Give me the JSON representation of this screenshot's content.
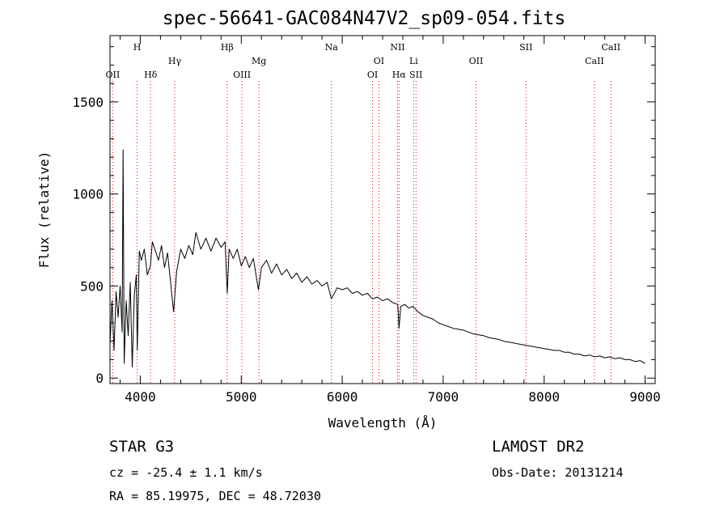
{
  "chart_data": {
    "type": "line",
    "title": "spec-56641-GAC084N47V2_sp09-054.fits",
    "xlabel": "Wavelength (Å)",
    "ylabel": "Flux (relative)",
    "xlim": [
      3700,
      9100
    ],
    "ylim": [
      -30,
      1860
    ],
    "xticks": [
      4000,
      5000,
      6000,
      7000,
      8000,
      9000
    ],
    "yticks": [
      0,
      500,
      1000,
      1500
    ],
    "grid": false,
    "series": [
      {
        "color": "#000000",
        "points": [
          [
            3700,
            180
          ],
          [
            3720,
            420
          ],
          [
            3740,
            150
          ],
          [
            3760,
            470
          ],
          [
            3780,
            330
          ],
          [
            3800,
            500
          ],
          [
            3820,
            250
          ],
          [
            3830,
            1240
          ],
          [
            3840,
            80
          ],
          [
            3860,
            420
          ],
          [
            3880,
            230
          ],
          [
            3900,
            520
          ],
          [
            3920,
            60
          ],
          [
            3940,
            450
          ],
          [
            3960,
            560
          ],
          [
            3970,
            150
          ],
          [
            3990,
            690
          ],
          [
            4010,
            640
          ],
          [
            4040,
            700
          ],
          [
            4070,
            560
          ],
          [
            4100,
            610
          ],
          [
            4120,
            740
          ],
          [
            4150,
            690
          ],
          [
            4180,
            640
          ],
          [
            4210,
            720
          ],
          [
            4240,
            600
          ],
          [
            4270,
            680
          ],
          [
            4300,
            520
          ],
          [
            4330,
            360
          ],
          [
            4360,
            580
          ],
          [
            4400,
            700
          ],
          [
            4440,
            650
          ],
          [
            4480,
            720
          ],
          [
            4520,
            670
          ],
          [
            4550,
            790
          ],
          [
            4600,
            700
          ],
          [
            4650,
            760
          ],
          [
            4700,
            690
          ],
          [
            4750,
            760
          ],
          [
            4800,
            710
          ],
          [
            4840,
            740
          ],
          [
            4861,
            460
          ],
          [
            4880,
            700
          ],
          [
            4920,
            650
          ],
          [
            4960,
            700
          ],
          [
            5000,
            610
          ],
          [
            5040,
            660
          ],
          [
            5080,
            600
          ],
          [
            5120,
            650
          ],
          [
            5170,
            480
          ],
          [
            5200,
            600
          ],
          [
            5250,
            640
          ],
          [
            5300,
            570
          ],
          [
            5350,
            620
          ],
          [
            5400,
            560
          ],
          [
            5450,
            590
          ],
          [
            5500,
            540
          ],
          [
            5550,
            570
          ],
          [
            5600,
            520
          ],
          [
            5650,
            550
          ],
          [
            5700,
            510
          ],
          [
            5750,
            530
          ],
          [
            5800,
            500
          ],
          [
            5850,
            520
          ],
          [
            5893,
            430
          ],
          [
            5950,
            490
          ],
          [
            6000,
            480
          ],
          [
            6050,
            490
          ],
          [
            6100,
            460
          ],
          [
            6150,
            470
          ],
          [
            6200,
            450
          ],
          [
            6250,
            460
          ],
          [
            6300,
            430
          ],
          [
            6350,
            440
          ],
          [
            6400,
            420
          ],
          [
            6450,
            430
          ],
          [
            6500,
            410
          ],
          [
            6550,
            400
          ],
          [
            6563,
            270
          ],
          [
            6580,
            390
          ],
          [
            6620,
            400
          ],
          [
            6660,
            380
          ],
          [
            6700,
            390
          ],
          [
            6750,
            360
          ],
          [
            6800,
            340
          ],
          [
            6850,
            330
          ],
          [
            6900,
            320
          ],
          [
            6950,
            300
          ],
          [
            7000,
            290
          ],
          [
            7050,
            280
          ],
          [
            7100,
            270
          ],
          [
            7150,
            265
          ],
          [
            7200,
            260
          ],
          [
            7250,
            250
          ],
          [
            7300,
            240
          ],
          [
            7350,
            235
          ],
          [
            7400,
            230
          ],
          [
            7450,
            220
          ],
          [
            7500,
            215
          ],
          [
            7550,
            210
          ],
          [
            7600,
            200
          ],
          [
            7650,
            195
          ],
          [
            7700,
            190
          ],
          [
            7750,
            185
          ],
          [
            7800,
            180
          ],
          [
            7850,
            175
          ],
          [
            7900,
            170
          ],
          [
            7950,
            165
          ],
          [
            8000,
            160
          ],
          [
            8050,
            155
          ],
          [
            8100,
            150
          ],
          [
            8150,
            150
          ],
          [
            8200,
            140
          ],
          [
            8250,
            140
          ],
          [
            8300,
            130
          ],
          [
            8350,
            130
          ],
          [
            8400,
            120
          ],
          [
            8450,
            125
          ],
          [
            8500,
            115
          ],
          [
            8550,
            120
          ],
          [
            8600,
            110
          ],
          [
            8650,
            115
          ],
          [
            8700,
            105
          ],
          [
            8750,
            110
          ],
          [
            8800,
            100
          ],
          [
            8850,
            100
          ],
          [
            8900,
            90
          ],
          [
            8950,
            95
          ],
          [
            9000,
            80
          ]
        ]
      }
    ],
    "lines": [
      {
        "label": "OII",
        "wavelength": 3727,
        "row": 3
      },
      {
        "label": "H",
        "wavelength": 3968,
        "row": 1
      },
      {
        "label": "Hδ",
        "wavelength": 4102,
        "row": 3
      },
      {
        "label": "Hγ",
        "wavelength": 4341,
        "row": 2
      },
      {
        "label": "Hβ",
        "wavelength": 4861,
        "row": 1
      },
      {
        "label": "OIII",
        "wavelength": 5007,
        "row": 3
      },
      {
        "label": "Mg",
        "wavelength": 5175,
        "row": 2
      },
      {
        "label": "Na",
        "wavelength": 5893,
        "row": 1
      },
      {
        "label": "OI",
        "wavelength": 6300,
        "row": 3
      },
      {
        "label": "OI",
        "wavelength": 6363,
        "row": 2
      },
      {
        "label": "NII",
        "wavelength": 6548,
        "row": 1
      },
      {
        "label": "Hα",
        "wavelength": 6563,
        "row": 3
      },
      {
        "label": "Li",
        "wavelength": 6708,
        "row": 2
      },
      {
        "label": "SII",
        "wavelength": 6731,
        "row": 3
      },
      {
        "label": "OII",
        "wavelength": 7325,
        "row": 2
      },
      {
        "label": "SII",
        "wavelength": 7820,
        "row": 1
      },
      {
        "label": "CaII",
        "wavelength": 8498,
        "row": 2
      },
      {
        "label": "CaII",
        "wavelength": 8662,
        "row": 1
      }
    ],
    "line_color": "#ff0000"
  },
  "info": {
    "object_class": "STAR    G3",
    "redshift": "cz = -25.4 ± 1.1 km/s",
    "coords": "RA =  85.19975, DEC =  48.72030",
    "survey": "LAMOST DR2",
    "obs_date": "Obs-Date: 20131214"
  }
}
